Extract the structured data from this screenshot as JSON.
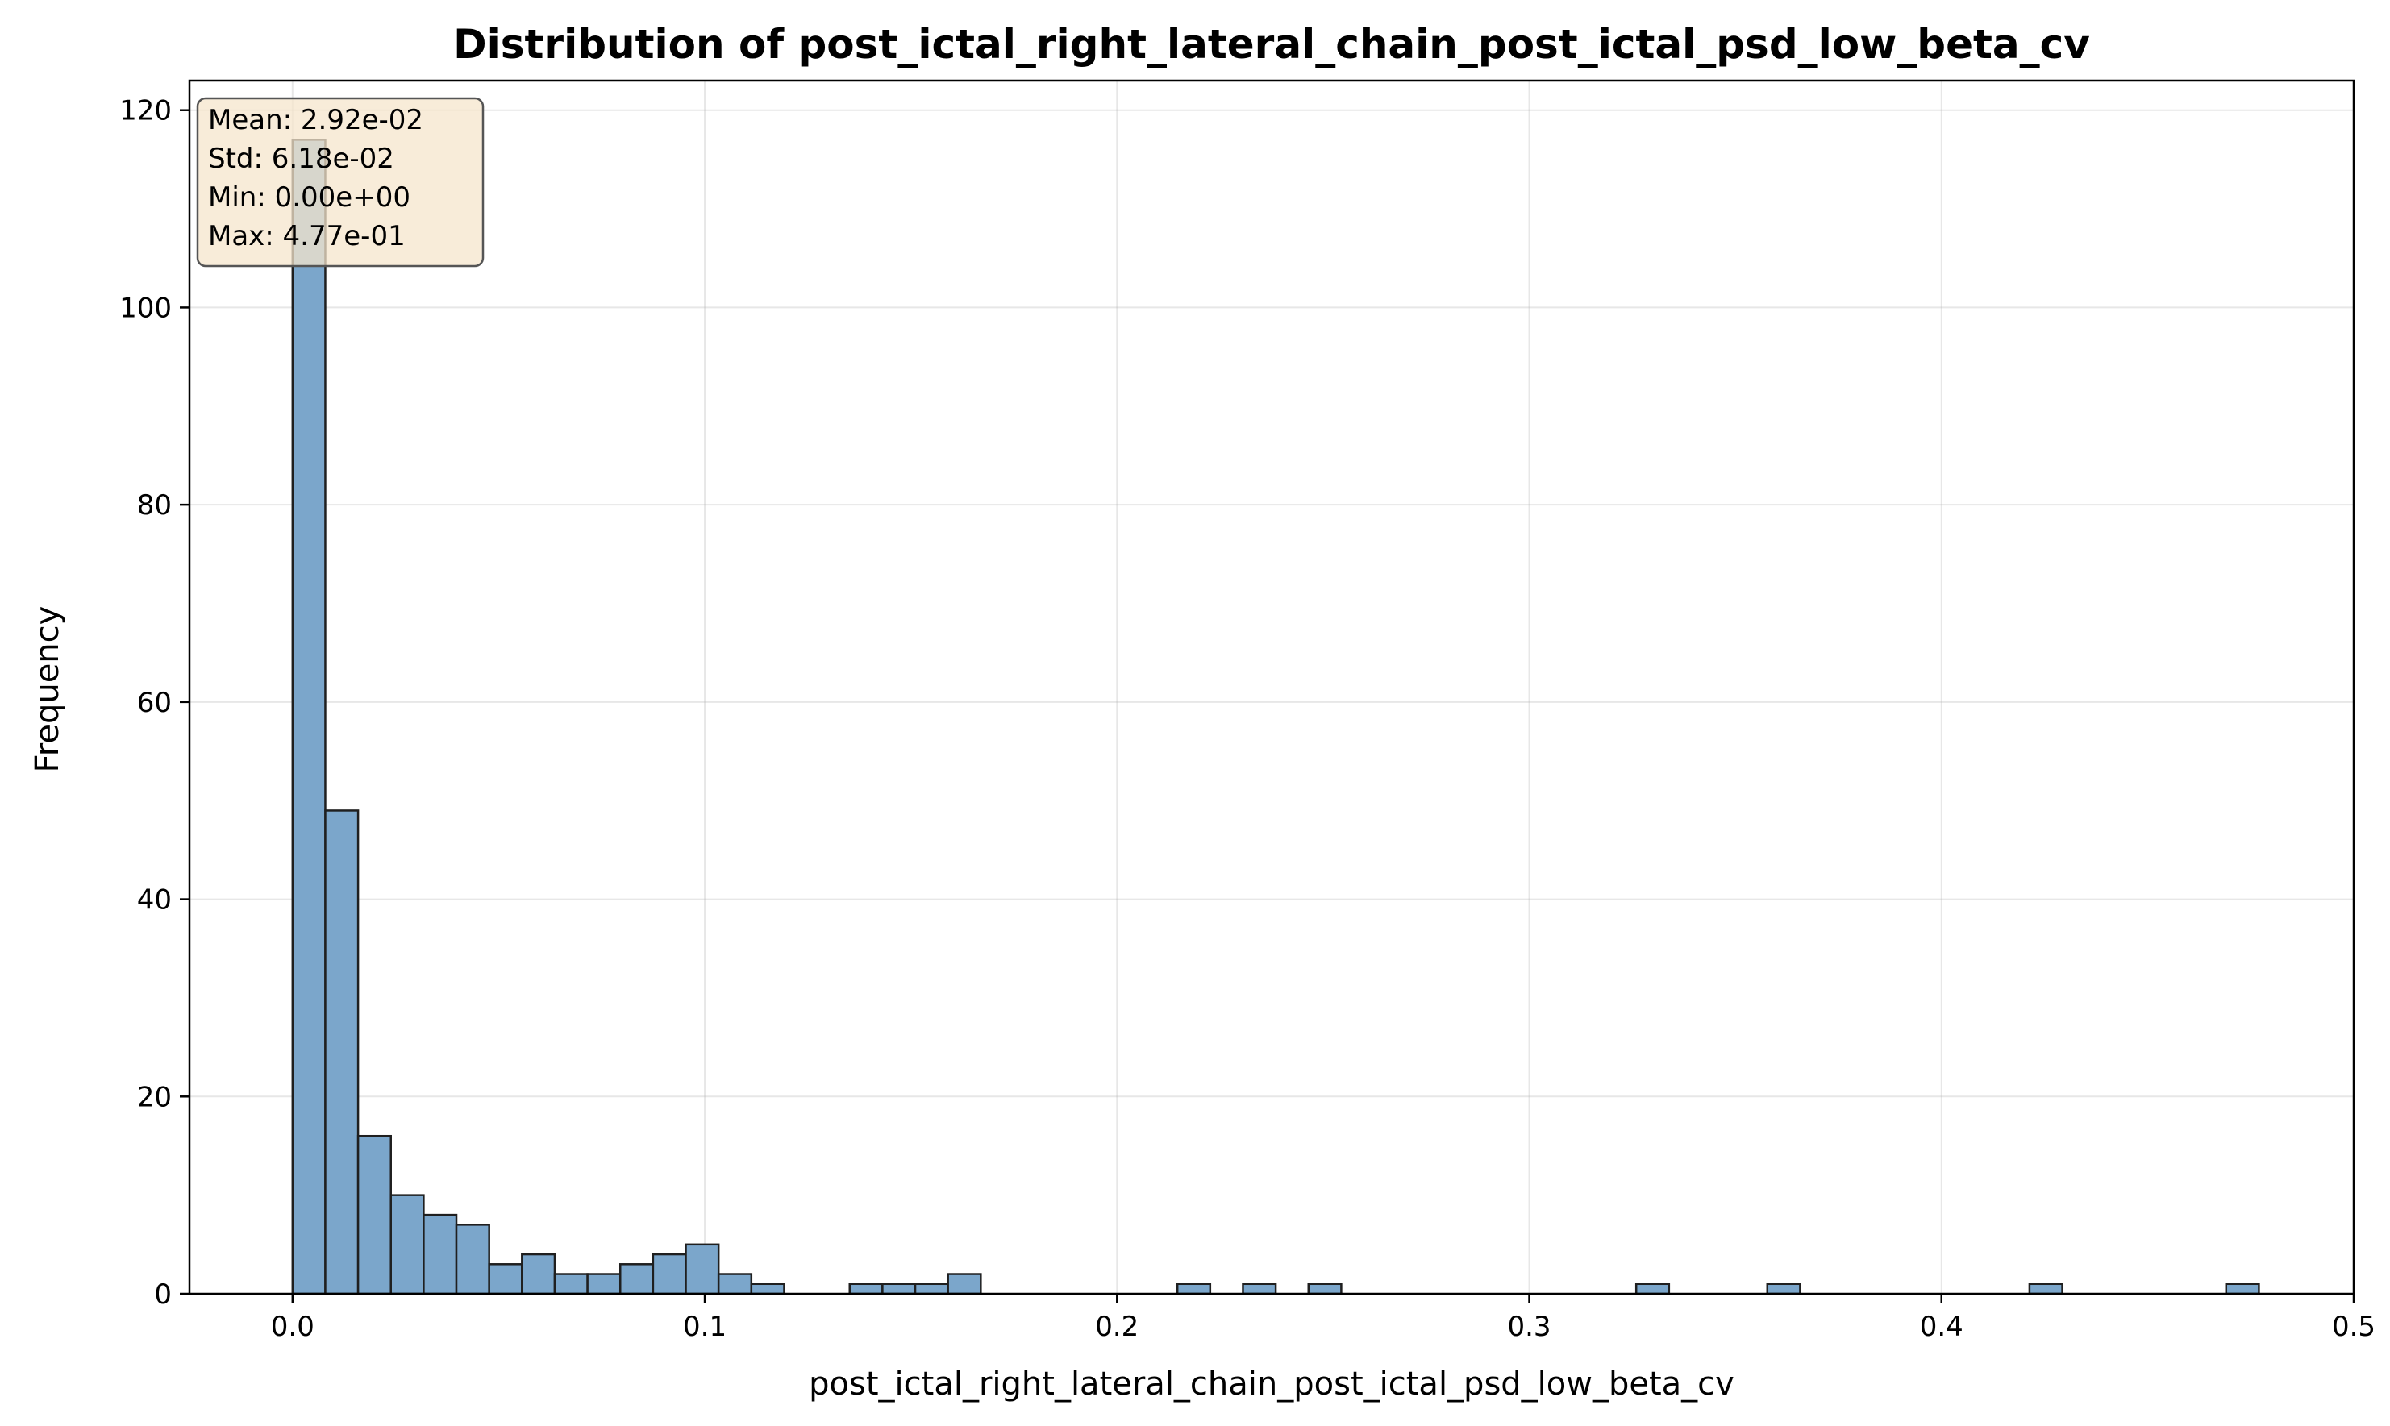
{
  "chart_data": {
    "type": "bar",
    "title": "Distribution of post_ictal_right_lateral_chain_post_ictal_psd_low_beta_cv",
    "xlabel": "post_ictal_right_lateral_chain_post_ictal_psd_low_beta_cv",
    "ylabel": "Frequency",
    "xlim": [
      -0.025,
      0.5
    ],
    "ylim": [
      0,
      123
    ],
    "x_ticks": [
      "0.0",
      "0.1",
      "0.2",
      "0.3",
      "0.4",
      "0.5"
    ],
    "y_ticks": [
      "0",
      "20",
      "40",
      "60",
      "80",
      "100",
      "120"
    ],
    "grid": true,
    "bin_start": 0.0,
    "bin_width": 0.00795,
    "counts": [
      117,
      49,
      16,
      10,
      8,
      7,
      3,
      4,
      2,
      2,
      3,
      4,
      5,
      2,
      1,
      0,
      0,
      1,
      1,
      1,
      2,
      0,
      0,
      0,
      0,
      0,
      0,
      1,
      0,
      1,
      0,
      1,
      0,
      0,
      0,
      0,
      0,
      0,
      0,
      0,
      0,
      1,
      0,
      0,
      0,
      1,
      0,
      0,
      0,
      0,
      0,
      0,
      0,
      1,
      0,
      0,
      0,
      0,
      0,
      1
    ],
    "bar_color": "#7BA6CB",
    "edge_color": "#1F1F1F",
    "stats": {
      "mean": "Mean: 2.92e-02",
      "std": "Std: 6.18e-02",
      "min": "Min: 0.00e+00",
      "max": "Max: 4.77e-01"
    },
    "stats_box_color": "#F5E6CC",
    "stats_box_placement": "top-left"
  }
}
